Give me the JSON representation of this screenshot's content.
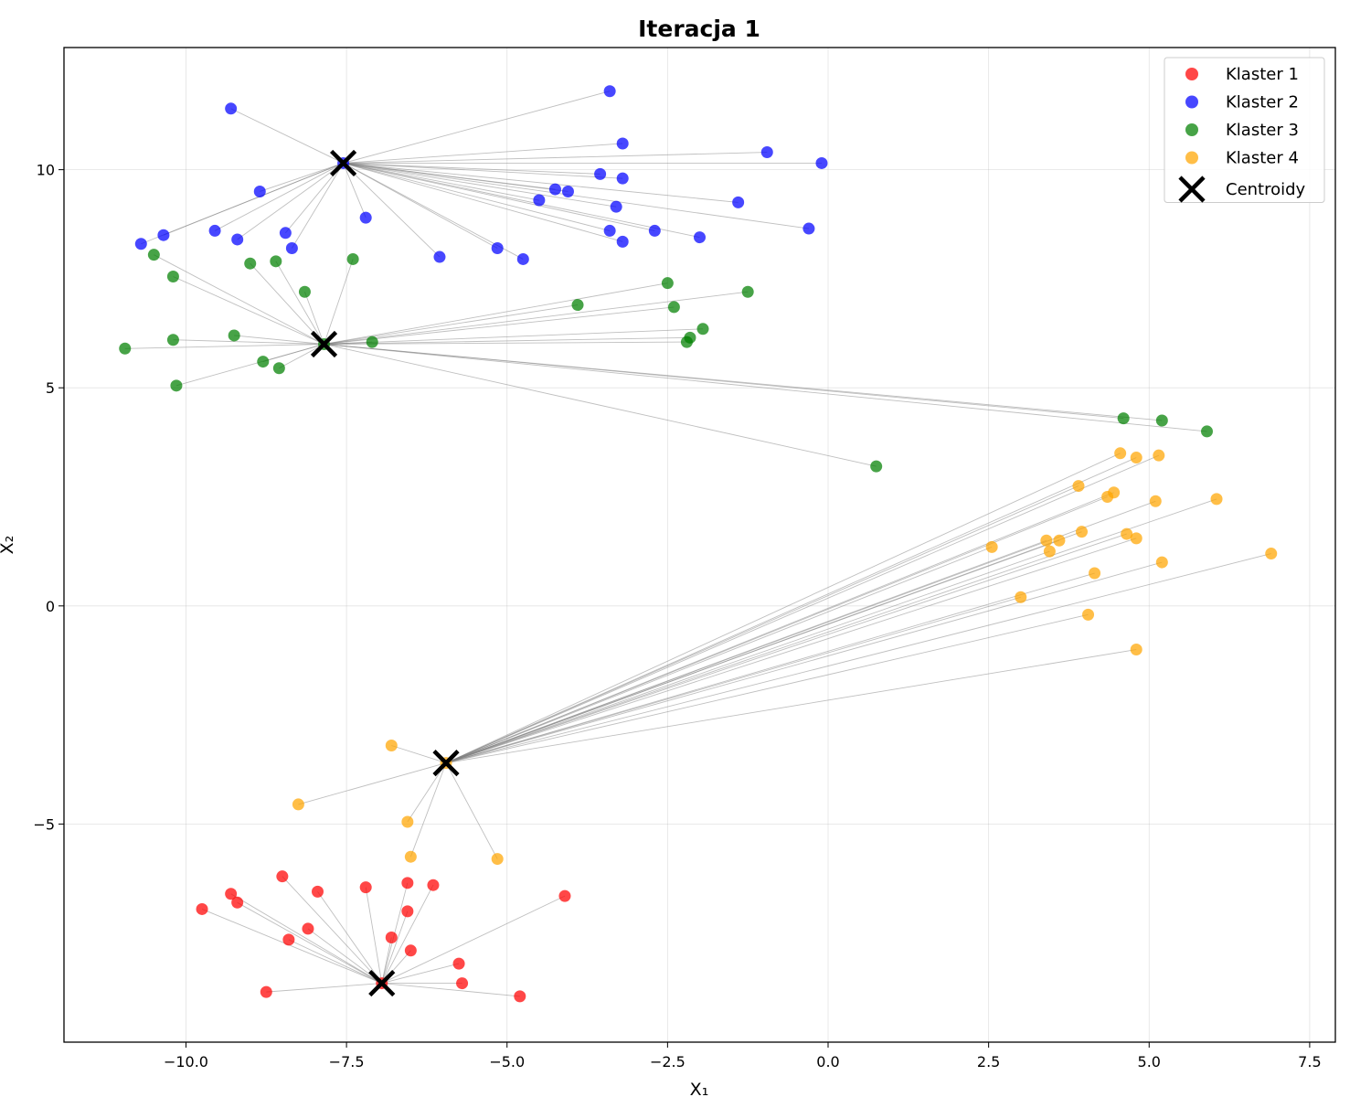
{
  "chart_data": {
    "type": "scatter",
    "title": "Iteracja 1",
    "xlabel": "X₁",
    "ylabel": "X₂",
    "xlim": [
      -11.9,
      7.9
    ],
    "ylim": [
      -10.0,
      12.8
    ],
    "xticks": [
      -10.0,
      -7.5,
      -5.0,
      -2.5,
      0.0,
      2.5,
      5.0,
      7.5
    ],
    "xtick_labels": [
      "−10.0",
      "−7.5",
      "−5.0",
      "−2.5",
      "0.0",
      "2.5",
      "5.0",
      "7.5"
    ],
    "yticks": [
      -5,
      0,
      5,
      10
    ],
    "ytick_labels": [
      "−5",
      "0",
      "5",
      "10"
    ],
    "grid": true,
    "legend_position": "top-right",
    "series": [
      {
        "name": "Klaster 1",
        "color": "#ff0000",
        "centroid": [
          -6.95,
          -8.65
        ],
        "points": [
          [
            -9.75,
            -6.95
          ],
          [
            -9.3,
            -6.6
          ],
          [
            -9.2,
            -6.8
          ],
          [
            -8.75,
            -8.85
          ],
          [
            -8.5,
            -6.2
          ],
          [
            -8.4,
            -7.65
          ],
          [
            -8.1,
            -7.4
          ],
          [
            -7.95,
            -6.55
          ],
          [
            -7.2,
            -6.45
          ],
          [
            -6.8,
            -7.6
          ],
          [
            -6.55,
            -6.35
          ],
          [
            -6.55,
            -7.0
          ],
          [
            -6.5,
            -7.9
          ],
          [
            -6.15,
            -6.4
          ],
          [
            -5.75,
            -8.2
          ],
          [
            -5.7,
            -8.65
          ],
          [
            -4.8,
            -8.95
          ],
          [
            -4.1,
            -6.65
          ],
          [
            -6.95,
            -8.65
          ]
        ]
      },
      {
        "name": "Klaster 2",
        "color": "#0000ff",
        "centroid": [
          -7.55,
          10.15
        ],
        "points": [
          [
            -10.7,
            8.3
          ],
          [
            -10.35,
            8.5
          ],
          [
            -9.55,
            8.6
          ],
          [
            -9.3,
            11.4
          ],
          [
            -9.2,
            8.4
          ],
          [
            -8.85,
            9.5
          ],
          [
            -8.45,
            8.55
          ],
          [
            -8.35,
            8.2
          ],
          [
            -7.55,
            10.15
          ],
          [
            -7.2,
            8.9
          ],
          [
            -6.05,
            8.0
          ],
          [
            -5.15,
            8.2
          ],
          [
            -4.75,
            7.95
          ],
          [
            -4.5,
            9.3
          ],
          [
            -4.25,
            9.55
          ],
          [
            -4.05,
            9.5
          ],
          [
            -3.55,
            9.9
          ],
          [
            -3.4,
            11.8
          ],
          [
            -3.4,
            8.6
          ],
          [
            -3.3,
            9.15
          ],
          [
            -3.2,
            10.6
          ],
          [
            -3.2,
            9.8
          ],
          [
            -3.2,
            8.35
          ],
          [
            -2.7,
            8.6
          ],
          [
            -2.0,
            8.45
          ],
          [
            -1.4,
            9.25
          ],
          [
            -0.95,
            10.4
          ],
          [
            -0.3,
            8.65
          ],
          [
            -0.1,
            10.15
          ]
        ]
      },
      {
        "name": "Klaster 3",
        "color": "#008000",
        "centroid": [
          -7.85,
          6.0
        ],
        "points": [
          [
            -10.95,
            5.9
          ],
          [
            -10.5,
            8.05
          ],
          [
            -10.2,
            7.55
          ],
          [
            -10.2,
            6.1
          ],
          [
            -10.15,
            5.05
          ],
          [
            -9.25,
            6.2
          ],
          [
            -9.0,
            7.85
          ],
          [
            -8.8,
            5.6
          ],
          [
            -8.6,
            7.9
          ],
          [
            -8.55,
            5.45
          ],
          [
            -8.15,
            7.2
          ],
          [
            -7.85,
            6.0
          ],
          [
            -7.4,
            7.95
          ],
          [
            -7.1,
            6.05
          ],
          [
            -3.9,
            6.9
          ],
          [
            -2.5,
            7.4
          ],
          [
            -2.4,
            6.85
          ],
          [
            -2.2,
            6.05
          ],
          [
            -2.15,
            6.15
          ],
          [
            -1.95,
            6.35
          ],
          [
            -1.25,
            7.2
          ],
          [
            0.75,
            3.2
          ],
          [
            4.6,
            4.3
          ],
          [
            5.2,
            4.25
          ],
          [
            5.9,
            4.0
          ]
        ]
      },
      {
        "name": "Klaster 4",
        "color": "#ffa500",
        "centroid": [
          -5.95,
          -3.6
        ],
        "points": [
          [
            -8.25,
            -4.55
          ],
          [
            -6.8,
            -3.2
          ],
          [
            -6.55,
            -4.95
          ],
          [
            -6.5,
            -5.75
          ],
          [
            -5.95,
            -3.6
          ],
          [
            -5.15,
            -5.8
          ],
          [
            2.55,
            1.35
          ],
          [
            3.0,
            0.2
          ],
          [
            3.4,
            1.5
          ],
          [
            3.45,
            1.25
          ],
          [
            3.6,
            1.5
          ],
          [
            3.9,
            2.75
          ],
          [
            3.95,
            1.7
          ],
          [
            4.05,
            -0.2
          ],
          [
            4.15,
            0.75
          ],
          [
            4.35,
            2.5
          ],
          [
            4.45,
            2.6
          ],
          [
            4.55,
            3.5
          ],
          [
            4.65,
            1.65
          ],
          [
            4.8,
            1.55
          ],
          [
            4.8,
            3.4
          ],
          [
            4.8,
            -1.0
          ],
          [
            5.1,
            2.4
          ],
          [
            5.15,
            3.45
          ],
          [
            5.2,
            1.0
          ],
          [
            6.05,
            2.45
          ],
          [
            6.9,
            1.2
          ]
        ]
      },
      {
        "name": "Centroidy",
        "color": "#000000",
        "marker": "x",
        "points": [
          [
            -7.55,
            10.15
          ],
          [
            -7.85,
            6.0
          ],
          [
            -5.95,
            -3.6
          ],
          [
            -6.95,
            -8.65
          ]
        ]
      }
    ]
  }
}
